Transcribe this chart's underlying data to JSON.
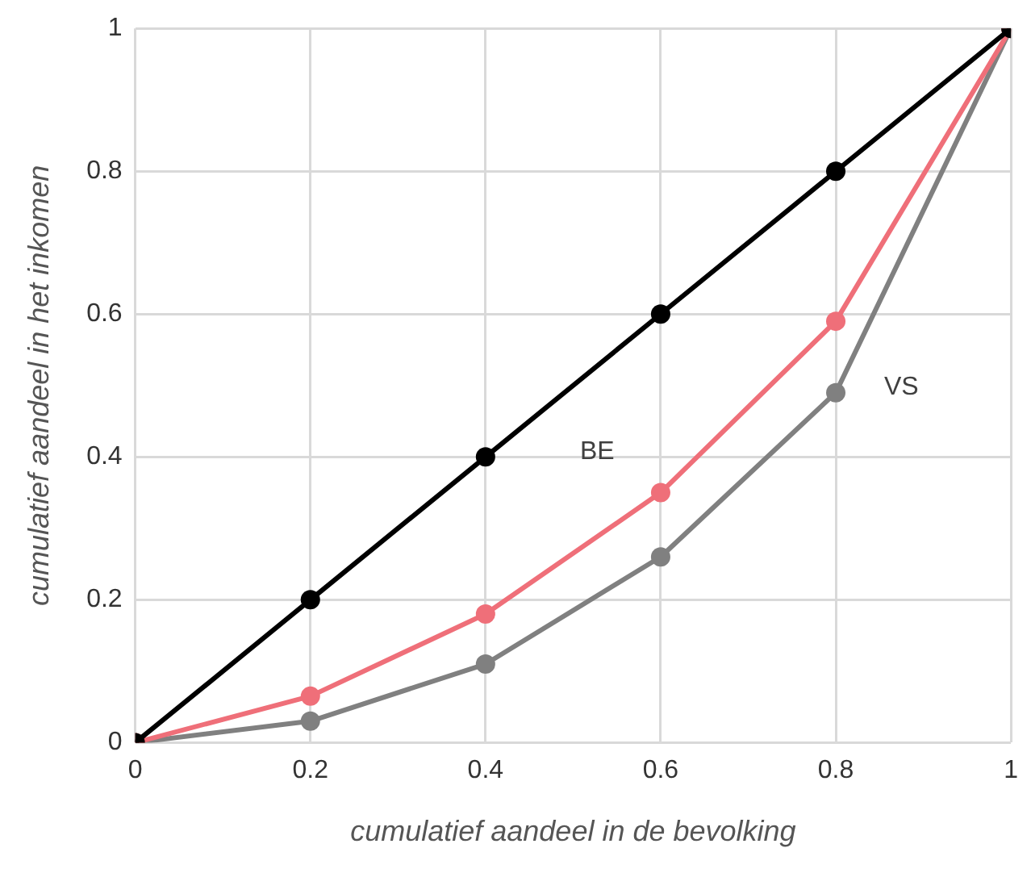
{
  "chart_data": {
    "type": "line",
    "xlabel": "cumulatief aandeel in de bevolking",
    "ylabel": "cumulatief aandeel in het inkomen",
    "x": [
      0,
      0.2,
      0.4,
      0.6,
      0.8,
      1
    ],
    "series": [
      {
        "color": "#000000",
        "values": [
          0,
          0.2,
          0.4,
          0.6,
          0.8,
          1
        ]
      },
      {
        "name": "BE",
        "color": "#ef6f79",
        "values": [
          0,
          0.065,
          0.18,
          0.35,
          0.59,
          1
        ]
      },
      {
        "name": "VS",
        "color": "#808080",
        "values": [
          0,
          0.03,
          0.11,
          0.26,
          0.49,
          1
        ]
      }
    ],
    "xlim": [
      0,
      1
    ],
    "xticks": [
      0,
      0.2,
      0.4,
      0.6,
      0.8,
      1
    ],
    "ylim": [
      0,
      1
    ],
    "yticks": [
      0,
      0.2,
      0.4,
      0.6,
      0.8,
      1
    ],
    "grid": true,
    "legend": false,
    "marker": "circle",
    "line_style": "solid"
  }
}
